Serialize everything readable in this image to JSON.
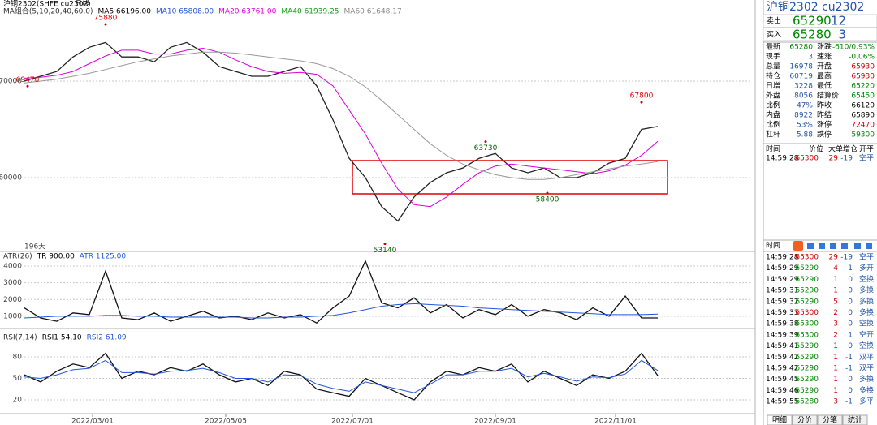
{
  "header": {
    "symbol": "沪铜2302(SHFE cu2302)",
    "period": "日线"
  },
  "chart_data": [
    {
      "type": "line",
      "legend_title": "MA组合(5,10,20,40,60,0)",
      "readouts": [
        {
          "text": "MA5 66196.00",
          "color": "#000000"
        },
        {
          "text": "MA10 65808.00",
          "color": "#2255dd"
        },
        {
          "text": "MA20 63761.00",
          "color": "#dd00dd"
        },
        {
          "text": "MA40 61939.25",
          "color": "#119911"
        },
        {
          "text": "MA60 61648.17",
          "color": "#888888"
        }
      ],
      "x": [
        0,
        5,
        10,
        15,
        20,
        25,
        30,
        35,
        40,
        45,
        50,
        55,
        60,
        65,
        70,
        75,
        80,
        85,
        90,
        95,
        100,
        105,
        110,
        115,
        120,
        125,
        130,
        135,
        140,
        145,
        150,
        155,
        160,
        165,
        170,
        175,
        180,
        185,
        190,
        195
      ],
      "series": [
        {
          "color": "#222222",
          "values": [
            70000,
            70500,
            71000,
            72500,
            73500,
            74000,
            72500,
            72500,
            72000,
            73500,
            74000,
            73000,
            71500,
            71000,
            70500,
            70500,
            71000,
            71500,
            69500,
            66000,
            62000,
            60000,
            57000,
            55500,
            58000,
            59500,
            60500,
            61000,
            62000,
            62500,
            61000,
            60500,
            61000,
            60000,
            60000,
            60500,
            61500,
            62000,
            65000,
            65300
          ]
        },
        {
          "color": "#dd00dd",
          "values": [
            70300,
            70400,
            70600,
            71000,
            71800,
            72600,
            73200,
            73200,
            72800,
            72800,
            73200,
            73400,
            73000,
            72200,
            71500,
            71000,
            70800,
            70900,
            70700,
            69500,
            67000,
            64500,
            61500,
            58800,
            57200,
            57000,
            58000,
            59300,
            60500,
            61200,
            61400,
            61200,
            61000,
            60800,
            60600,
            60400,
            60700,
            61300,
            62300,
            63760
          ]
        },
        {
          "color": "#999999",
          "values": [
            69800,
            70000,
            70200,
            70500,
            70800,
            71200,
            71600,
            72000,
            72300,
            72600,
            72800,
            73000,
            73000,
            72900,
            72700,
            72500,
            72300,
            72100,
            71800,
            71300,
            70500,
            69400,
            68000,
            66500,
            65000,
            63500,
            62300,
            61400,
            60800,
            60300,
            60000,
            59800,
            59800,
            60000,
            60300,
            60600,
            60900,
            61200,
            61400,
            61650
          ]
        }
      ],
      "annotations": [
        {
          "x": 25,
          "value": 75880
        },
        {
          "x": 1,
          "value": 69470
        },
        {
          "x": 142,
          "value": 63730
        },
        {
          "x": 161,
          "value": 58400
        },
        {
          "x": 111,
          "value": 53140
        },
        {
          "x": 190,
          "value": 67800
        }
      ],
      "note": "196天",
      "xlim": [
        0,
        224
      ],
      "ylim": [
        52350,
        78400
      ],
      "yticks": [
        60000,
        70000
      ]
    },
    {
      "type": "line",
      "legend_title": "ATR(26)",
      "readouts": [
        {
          "text": "TR 900.00",
          "color": "#000000"
        },
        {
          "text": "ATR 1125.00",
          "color": "#2255dd"
        }
      ],
      "x": [
        0,
        5,
        10,
        15,
        20,
        25,
        30,
        35,
        40,
        45,
        50,
        55,
        60,
        65,
        70,
        75,
        80,
        85,
        90,
        95,
        100,
        105,
        110,
        115,
        120,
        125,
        130,
        135,
        140,
        145,
        150,
        155,
        160,
        165,
        170,
        175,
        180,
        185,
        190,
        195
      ],
      "series": [
        {
          "color": "#111111",
          "values": [
            1500,
            900,
            700,
            1200,
            1100,
            3700,
            900,
            800,
            1200,
            700,
            1000,
            1300,
            900,
            1000,
            800,
            1200,
            900,
            1100,
            600,
            1500,
            2200,
            4300,
            1800,
            1500,
            2100,
            1200,
            1700,
            900,
            1400,
            1100,
            1700,
            1000,
            1400,
            1200,
            800,
            1500,
            1000,
            2200,
            900,
            900
          ]
        },
        {
          "color": "#2255dd",
          "values": [
            900,
            950,
            1000,
            1000,
            1000,
            1050,
            1050,
            1000,
            1000,
            950,
            950,
            950,
            950,
            950,
            900,
            900,
            950,
            950,
            1000,
            1050,
            1200,
            1400,
            1600,
            1700,
            1750,
            1700,
            1650,
            1600,
            1500,
            1450,
            1400,
            1350,
            1300,
            1250,
            1200,
            1150,
            1100,
            1100,
            1100,
            1125
          ]
        }
      ],
      "xlim": [
        0,
        224
      ],
      "ylim": [
        270,
        4870
      ],
      "yticks": [
        1000,
        2000,
        3000,
        4000
      ]
    },
    {
      "type": "line",
      "legend_title": "RSI(7,14)",
      "readouts": [
        {
          "text": "RSI1 54.10",
          "color": "#000000"
        },
        {
          "text": "RSI2 61.09",
          "color": "#2255dd"
        }
      ],
      "x": [
        0,
        5,
        10,
        15,
        20,
        25,
        30,
        35,
        40,
        45,
        50,
        55,
        60,
        65,
        70,
        75,
        80,
        85,
        90,
        95,
        100,
        105,
        110,
        115,
        120,
        125,
        130,
        135,
        140,
        145,
        150,
        155,
        160,
        165,
        170,
        175,
        180,
        185,
        190,
        195
      ],
      "series": [
        {
          "color": "#111111",
          "values": [
            55,
            45,
            60,
            70,
            65,
            85,
            50,
            60,
            55,
            65,
            60,
            70,
            55,
            45,
            50,
            40,
            60,
            55,
            35,
            30,
            25,
            50,
            40,
            30,
            20,
            45,
            60,
            55,
            65,
            60,
            70,
            45,
            60,
            50,
            40,
            55,
            50,
            60,
            85,
            54
          ]
        },
        {
          "color": "#2255dd",
          "values": [
            52,
            50,
            55,
            62,
            64,
            75,
            58,
            58,
            56,
            60,
            61,
            64,
            58,
            50,
            50,
            45,
            55,
            54,
            42,
            36,
            32,
            45,
            40,
            35,
            30,
            42,
            55,
            55,
            60,
            60,
            64,
            52,
            57,
            52,
            46,
            52,
            51,
            56,
            75,
            61
          ]
        }
      ],
      "xlim": [
        0,
        224
      ],
      "ylim": [
        3,
        114
      ],
      "yticks": [
        20,
        50,
        80
      ],
      "xticks": [
        {
          "value": 21,
          "label": "2022/03/01"
        },
        {
          "value": 62,
          "label": "2022/05/05"
        },
        {
          "value": 101,
          "label": "2022/07/01"
        },
        {
          "value": 145,
          "label": "2022/09/01"
        },
        {
          "value": 182,
          "label": "2022/11/01"
        }
      ]
    }
  ],
  "panel": {
    "title": "沪铜2302  cu2302",
    "ask": {
      "label": "卖出",
      "price": 65290,
      "volume": 12
    },
    "bid": {
      "label": "买入",
      "price": 65280,
      "volume": 3
    },
    "stats": [
      [
        "最新",
        65280,
        "涨跌",
        "-610/0.93%"
      ],
      [
        "现手",
        3,
        "速涨",
        "-0.06%"
      ],
      [
        "总量",
        16978,
        "开盘",
        65930
      ],
      [
        "持仓",
        60719,
        "最高",
        65930
      ],
      [
        "日增",
        3228,
        "最低",
        65220
      ],
      [
        "外盘",
        8056,
        "结算价",
        65450
      ],
      [
        "比例",
        "47%",
        "昨收",
        66120
      ],
      [
        "内盘",
        8922,
        "昨结",
        65890
      ],
      [
        "比例",
        "53%",
        "涨停",
        72470
      ],
      [
        "杠杆",
        5.88,
        "跌停",
        59300
      ]
    ],
    "trade_header": [
      "时间",
      "价位",
      "大单",
      "增仓",
      "开平"
    ],
    "last_trade": [
      "14:59:28",
      65300,
      29,
      -19,
      "空平"
    ],
    "ticks_header": "时间",
    "ticks": [
      [
        "14:59:28",
        65300,
        29,
        -19,
        "空平"
      ],
      [
        "14:59:29",
        65290,
        4,
        1,
        "多开"
      ],
      [
        "14:59:29",
        65290,
        1,
        0,
        "空换"
      ],
      [
        "14:59:31",
        65290,
        1,
        0,
        "多换"
      ],
      [
        "14:59:32",
        65290,
        5,
        0,
        "多换"
      ],
      [
        "14:59:33",
        65300,
        2,
        0,
        "多换"
      ],
      [
        "14:59:38",
        65300,
        3,
        0,
        "空换"
      ],
      [
        "14:59:39",
        65300,
        2,
        1,
        "空开"
      ],
      [
        "14:59:41",
        65290,
        1,
        0,
        "空换"
      ],
      [
        "14:59:42",
        65290,
        1,
        -1,
        "双平"
      ],
      [
        "14:59:42",
        65290,
        1,
        -1,
        "双平"
      ],
      [
        "14:59:45",
        65290,
        1,
        0,
        "多换"
      ],
      [
        "14:59:46",
        65290,
        1,
        0,
        "多换"
      ],
      [
        "14:59:55",
        65280,
        3,
        -1,
        "多平"
      ]
    ],
    "tabs": [
      "明细",
      "分价",
      "分笔",
      "统计"
    ]
  }
}
